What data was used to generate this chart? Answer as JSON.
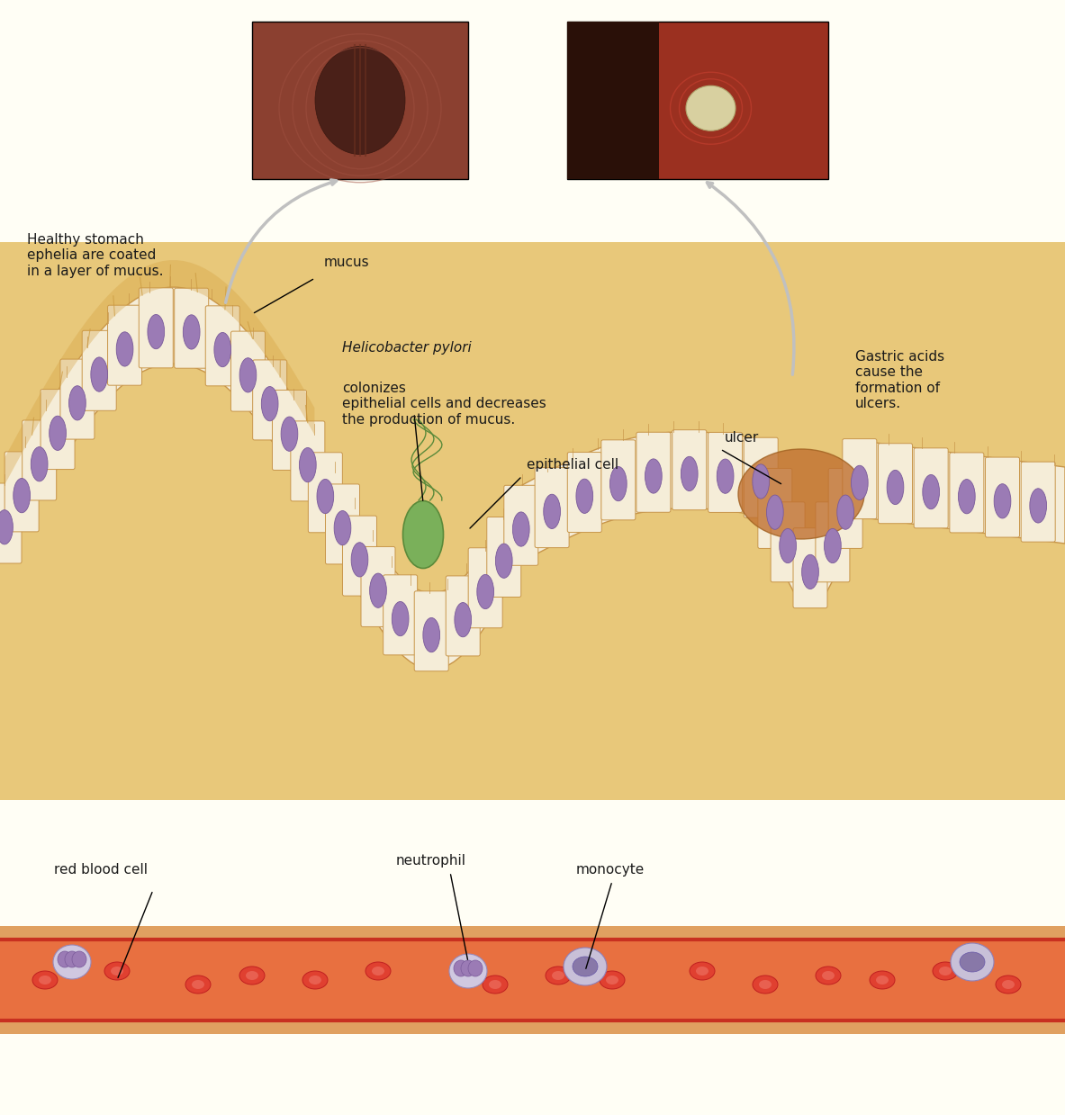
{
  "bg_color": "#FFFEF5",
  "tissue_fill": "#E8C87A",
  "tissue_outline": "#C8964A",
  "mucus_color": "#D4A857",
  "cell_fill": "#F5EDD8",
  "cell_outline": "#C8964A",
  "nucleus_fill": "#9B7BB5",
  "nucleus_outline": "#7A5A9A",
  "bacteria_fill": "#7AB05A",
  "bacteria_outline": "#5A8A3A",
  "blood_vessel_fill": "#E8A060",
  "blood_vessel_border": "#C85030",
  "rbc_fill": "#E05030",
  "rbc_outline": "#C03020",
  "neutrophil_fill": "#C8C0D8",
  "neutrophil_outline": "#9888B8",
  "monocyte_fill": "#C0B8D8",
  "monocyte_outline": "#9080B8",
  "ulcer_color": "#C8803A",
  "arrow_color": "#C0C0C0",
  "text_color": "#1A1A1A",
  "annotation_font_size": 11,
  "title_font_size": 12,
  "fig_width": 11.83,
  "fig_height": 12.39,
  "labels": {
    "healthy_stomach": "Healthy stomach\nephelia are coated\nin a layer of mucus.",
    "mucus": "mucus",
    "helicobacter": "Helicobacter pylori colonizes\nepithelial cells and decreases\nthe production of mucus.",
    "epithelial_cell": "epithelial cell",
    "ulcer": "ulcer",
    "gastric_acids": "Gastric acids\ncause the\nformation of\nulcers.",
    "red_blood_cell": "red blood cell",
    "neutrophil": "neutrophil",
    "monocyte": "monocyte"
  }
}
